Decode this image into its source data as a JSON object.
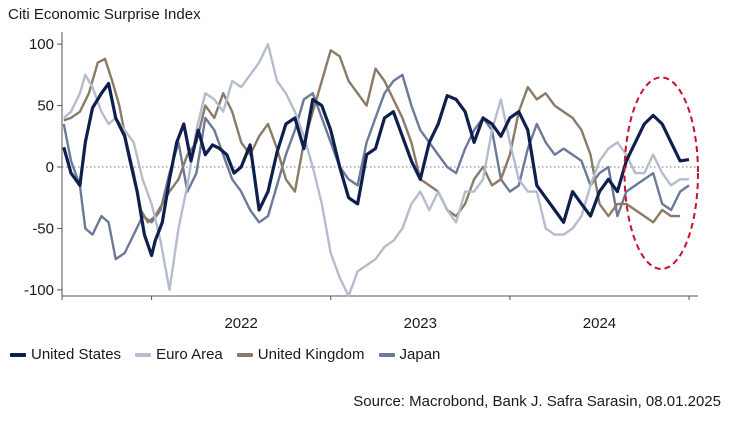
{
  "chart_data": {
    "type": "line",
    "title": "Citi Economic Surprise Index",
    "ylim": [
      -105,
      105
    ],
    "yticks": [
      100,
      50,
      0,
      -50,
      -100
    ],
    "ytick_labels": [
      "100",
      "50",
      "0",
      "-50",
      "-100"
    ],
    "xlim": [
      2021.5,
      2025.05
    ],
    "xtick_labels": [
      {
        "label": "2022",
        "x": 2022.0
      },
      {
        "label": "2023",
        "x": 2023.0
      },
      {
        "label": "2024",
        "x": 2024.0
      }
    ],
    "zero_line": "dotted",
    "legend_position": "bottom-left",
    "highlight": {
      "shape": "dashed-ellipse",
      "color": "#c8102e",
      "x_range": [
        2024.64,
        2025.05
      ],
      "y_range": [
        -83,
        73
      ]
    },
    "series": [
      {
        "name": "United States",
        "color": "#0e1f4d",
        "x": [
          2021.51,
          2021.55,
          2021.6,
          2021.63,
          2021.67,
          2021.72,
          2021.76,
          2021.8,
          2021.85,
          2021.88,
          2021.92,
          2021.96,
          2022.0,
          2022.02,
          2022.06,
          2022.1,
          2022.14,
          2022.18,
          2022.22,
          2022.26,
          2022.3,
          2022.34,
          2022.38,
          2022.42,
          2022.46,
          2022.5,
          2022.55,
          2022.6,
          2022.65,
          2022.7,
          2022.75,
          2022.8,
          2022.85,
          2022.9,
          2022.95,
          2023.0,
          2023.05,
          2023.1,
          2023.15,
          2023.2,
          2023.25,
          2023.3,
          2023.35,
          2023.4,
          2023.45,
          2023.5,
          2023.55,
          2023.6,
          2023.65,
          2023.7,
          2023.75,
          2023.8,
          2023.85,
          2023.9,
          2023.95,
          2024.0,
          2024.05,
          2024.1,
          2024.15,
          2024.2,
          2024.25,
          2024.3,
          2024.35,
          2024.4,
          2024.45,
          2024.5,
          2024.55,
          2024.6,
          2024.65,
          2024.7,
          2024.75,
          2024.8,
          2024.85,
          2024.9,
          2024.95,
          2025.0
        ],
        "values": [
          16,
          -5,
          -15,
          20,
          48,
          60,
          68,
          40,
          25,
          5,
          -20,
          -55,
          -72,
          -60,
          -45,
          -10,
          20,
          35,
          5,
          30,
          10,
          18,
          15,
          10,
          -5,
          0,
          18,
          -35,
          -20,
          12,
          35,
          40,
          15,
          55,
          50,
          30,
          0,
          -25,
          -30,
          10,
          15,
          40,
          45,
          25,
          5,
          -10,
          20,
          35,
          58,
          55,
          45,
          20,
          40,
          35,
          25,
          40,
          45,
          30,
          -15,
          -25,
          -35,
          -45,
          -20,
          -30,
          -40,
          -20,
          -10,
          -20,
          5,
          20,
          35,
          42,
          35,
          20,
          5,
          6
        ]
      },
      {
        "name": "Euro Area",
        "color": "#b4bccd",
        "x": [
          2021.51,
          2021.55,
          2021.6,
          2021.63,
          2021.67,
          2021.72,
          2021.76,
          2021.8,
          2021.85,
          2021.9,
          2021.95,
          2022.0,
          2022.05,
          2022.1,
          2022.15,
          2022.2,
          2022.25,
          2022.3,
          2022.35,
          2022.4,
          2022.45,
          2022.5,
          2022.55,
          2022.6,
          2022.65,
          2022.7,
          2022.75,
          2022.8,
          2022.85,
          2022.9,
          2022.95,
          2023.0,
          2023.05,
          2023.1,
          2023.15,
          2023.2,
          2023.25,
          2023.3,
          2023.35,
          2023.4,
          2023.45,
          2023.5,
          2023.55,
          2023.6,
          2023.65,
          2023.7,
          2023.75,
          2023.8,
          2023.85,
          2023.9,
          2023.95,
          2024.0,
          2024.05,
          2024.1,
          2024.15,
          2024.2,
          2024.25,
          2024.3,
          2024.35,
          2024.4,
          2024.45,
          2024.5,
          2024.55,
          2024.6,
          2024.65,
          2024.7,
          2024.75,
          2024.8,
          2024.85,
          2024.9,
          2024.95,
          2025.0
        ],
        "values": [
          40,
          45,
          60,
          75,
          65,
          45,
          35,
          40,
          30,
          20,
          -10,
          -30,
          -60,
          -100,
          -50,
          -15,
          30,
          60,
          55,
          45,
          70,
          65,
          75,
          85,
          100,
          70,
          60,
          45,
          25,
          0,
          -30,
          -70,
          -90,
          -105,
          -85,
          -80,
          -75,
          -65,
          -60,
          -50,
          -30,
          -20,
          -35,
          -20,
          -35,
          -45,
          -20,
          -20,
          -10,
          30,
          55,
          20,
          -10,
          -20,
          -20,
          -50,
          -55,
          -55,
          -50,
          -40,
          -15,
          5,
          15,
          20,
          10,
          -5,
          -5,
          10,
          -5,
          -15,
          -10,
          -10
        ]
      },
      {
        "name": "United Kingdom",
        "color": "#8a7a66",
        "x": [
          2021.51,
          2021.55,
          2021.6,
          2021.65,
          2021.7,
          2021.74,
          2021.78,
          2021.82,
          2021.86,
          2021.9,
          2021.94,
          2021.98,
          2022.02,
          2022.06,
          2022.1,
          2022.15,
          2022.2,
          2022.25,
          2022.3,
          2022.35,
          2022.4,
          2022.45,
          2022.5,
          2022.55,
          2022.6,
          2022.65,
          2022.7,
          2022.75,
          2022.8,
          2022.85,
          2022.9,
          2022.95,
          2023.0,
          2023.05,
          2023.1,
          2023.15,
          2023.2,
          2023.25,
          2023.3,
          2023.35,
          2023.4,
          2023.45,
          2023.5,
          2023.55,
          2023.6,
          2023.65,
          2023.7,
          2023.75,
          2023.8,
          2023.85,
          2023.9,
          2023.95,
          2024.0,
          2024.05,
          2024.1,
          2024.15,
          2024.2,
          2024.25,
          2024.3,
          2024.35,
          2024.4,
          2024.45,
          2024.5,
          2024.55,
          2024.6,
          2024.65,
          2024.7,
          2024.75,
          2024.8,
          2024.85,
          2024.9,
          2024.95
        ],
        "values": [
          38,
          40,
          45,
          60,
          85,
          88,
          70,
          50,
          20,
          -5,
          -35,
          -45,
          -40,
          -30,
          -20,
          -10,
          10,
          20,
          50,
          40,
          60,
          45,
          20,
          10,
          25,
          35,
          15,
          -10,
          -20,
          20,
          45,
          70,
          95,
          90,
          70,
          60,
          50,
          80,
          70,
          55,
          40,
          20,
          -10,
          -15,
          -20,
          -35,
          -40,
          -30,
          -10,
          0,
          -15,
          -10,
          10,
          45,
          65,
          55,
          60,
          50,
          45,
          40,
          30,
          10,
          -30,
          -40,
          -30,
          -30,
          -35,
          -40,
          -45,
          -35,
          -40,
          -40
        ]
      },
      {
        "name": "Japan",
        "color": "#6b7a99",
        "x": [
          2021.51,
          2021.55,
          2021.6,
          2021.63,
          2021.67,
          2021.72,
          2021.76,
          2021.8,
          2021.85,
          2021.9,
          2021.95,
          2022.0,
          2022.05,
          2022.1,
          2022.15,
          2022.2,
          2022.25,
          2022.3,
          2022.35,
          2022.4,
          2022.45,
          2022.5,
          2022.55,
          2022.6,
          2022.65,
          2022.7,
          2022.75,
          2022.8,
          2022.85,
          2022.9,
          2022.95,
          2023.0,
          2023.05,
          2023.1,
          2023.15,
          2023.2,
          2023.25,
          2023.3,
          2023.35,
          2023.4,
          2023.45,
          2023.5,
          2023.55,
          2023.6,
          2023.65,
          2023.7,
          2023.75,
          2023.8,
          2023.85,
          2023.9,
          2023.95,
          2024.0,
          2024.05,
          2024.1,
          2024.15,
          2024.2,
          2024.25,
          2024.3,
          2024.35,
          2024.4,
          2024.45,
          2024.5,
          2024.55,
          2024.6,
          2024.65,
          2024.7,
          2024.75,
          2024.8,
          2024.85,
          2024.9,
          2024.95,
          2025.0
        ],
        "values": [
          35,
          5,
          -15,
          -50,
          -55,
          -40,
          -45,
          -75,
          -70,
          -55,
          -40,
          -45,
          -35,
          -5,
          20,
          -20,
          -5,
          40,
          30,
          10,
          -10,
          -20,
          -35,
          -45,
          -40,
          -15,
          10,
          30,
          55,
          60,
          40,
          20,
          0,
          -10,
          -15,
          20,
          40,
          60,
          70,
          75,
          50,
          30,
          20,
          10,
          0,
          -5,
          15,
          30,
          40,
          30,
          -10,
          -20,
          -15,
          15,
          35,
          20,
          10,
          15,
          10,
          5,
          -15,
          -5,
          0,
          -40,
          -20,
          -15,
          -10,
          -5,
          -30,
          -35,
          -20,
          -15
        ]
      }
    ]
  },
  "source": "Source: Macrobond, Bank J. Safra Sarasin, 08.01.2025"
}
